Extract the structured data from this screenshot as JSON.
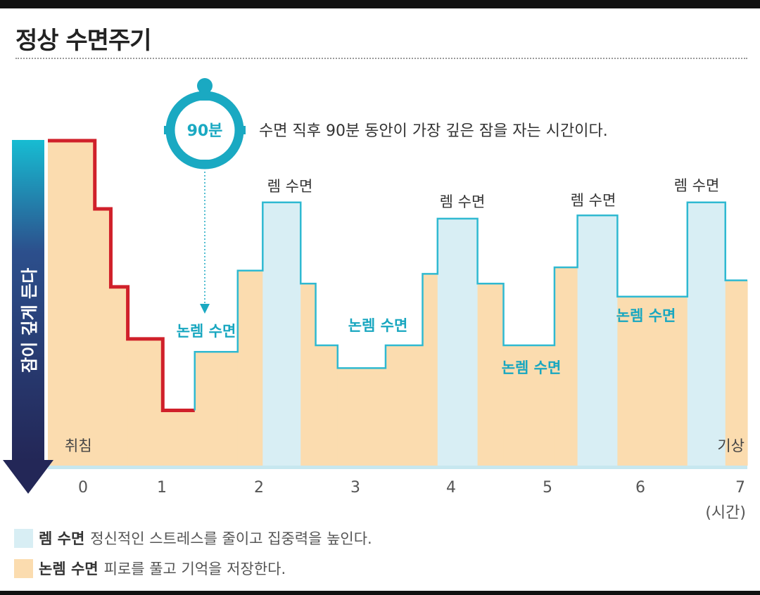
{
  "header": {
    "title": "정상 수면주기"
  },
  "colors": {
    "rem": "#d8eef4",
    "nrem": "#fbdcaf",
    "rem_outline": "#2fb9d1",
    "accent": "#1aa9c2",
    "first_cycle": "#d0202a",
    "arrow_top": "#17bcd2",
    "arrow_bottom": "#232757"
  },
  "chart_data": {
    "type": "area",
    "title": "정상 수면주기",
    "xlabel": "(시간)",
    "ylabel": "잠이 깊게 든다",
    "x_ticks": [
      "0",
      "1",
      "2",
      "3",
      "4",
      "5",
      "6",
      "7"
    ],
    "xlim": [
      0,
      7
    ],
    "ylim": [
      0,
      100
    ],
    "depth_axis_note": "higher value = lighter sleep (toward waking)",
    "hypnogram": [
      {
        "x0": 0.0,
        "x1": 0.47,
        "y": 100,
        "stage": "first"
      },
      {
        "x0": 0.47,
        "x1": 0.63,
        "y": 79,
        "stage": "first"
      },
      {
        "x0": 0.63,
        "x1": 0.8,
        "y": 55,
        "stage": "first"
      },
      {
        "x0": 0.8,
        "x1": 1.15,
        "y": 39,
        "stage": "first"
      },
      {
        "x0": 1.15,
        "x1": 1.47,
        "y": 17,
        "stage": "first"
      },
      {
        "x0": 1.47,
        "x1": 1.9,
        "y": 35,
        "stage": "nrem"
      },
      {
        "x0": 1.9,
        "x1": 2.15,
        "y": 60,
        "stage": "nrem"
      },
      {
        "x0": 2.15,
        "x1": 2.53,
        "y": 81,
        "stage": "rem"
      },
      {
        "x0": 2.53,
        "x1": 2.68,
        "y": 56,
        "stage": "nrem"
      },
      {
        "x0": 2.68,
        "x1": 2.9,
        "y": 37,
        "stage": "nrem"
      },
      {
        "x0": 2.9,
        "x1": 3.38,
        "y": 30,
        "stage": "nrem"
      },
      {
        "x0": 3.38,
        "x1": 3.75,
        "y": 37,
        "stage": "nrem"
      },
      {
        "x0": 3.75,
        "x1": 3.9,
        "y": 59,
        "stage": "nrem"
      },
      {
        "x0": 3.9,
        "x1": 4.3,
        "y": 76,
        "stage": "rem"
      },
      {
        "x0": 4.3,
        "x1": 4.56,
        "y": 56,
        "stage": "nrem"
      },
      {
        "x0": 4.56,
        "x1": 5.07,
        "y": 37,
        "stage": "nrem"
      },
      {
        "x0": 5.07,
        "x1": 5.3,
        "y": 61,
        "stage": "nrem"
      },
      {
        "x0": 5.3,
        "x1": 5.7,
        "y": 77,
        "stage": "rem"
      },
      {
        "x0": 5.7,
        "x1": 6.4,
        "y": 52,
        "stage": "nrem"
      },
      {
        "x0": 6.4,
        "x1": 6.78,
        "y": 81,
        "stage": "rem"
      },
      {
        "x0": 6.78,
        "x1": 7.3,
        "y": 57,
        "stage": "nrem"
      }
    ],
    "annotations": {
      "rem_labels": [
        "렘 수면",
        "렘 수면",
        "렘 수면",
        "렘 수면"
      ],
      "nrem_labels": [
        "논렘 수면",
        "논렘 수면",
        "논렘 수면",
        "논렘 수면"
      ],
      "clock_label": "90분",
      "clock_note": "수면 직후 90분 동안이 가장 깊은 잠을 자는 시간이다.",
      "start_label": "취침",
      "end_label": "기상"
    },
    "legend": [
      {
        "name": "렘 수면",
        "desc": "정신적인 스트레스를 줄이고 집중력을 높인다."
      },
      {
        "name": "논렘 수면",
        "desc": "피로를 풀고 기억을 저장한다."
      }
    ]
  }
}
